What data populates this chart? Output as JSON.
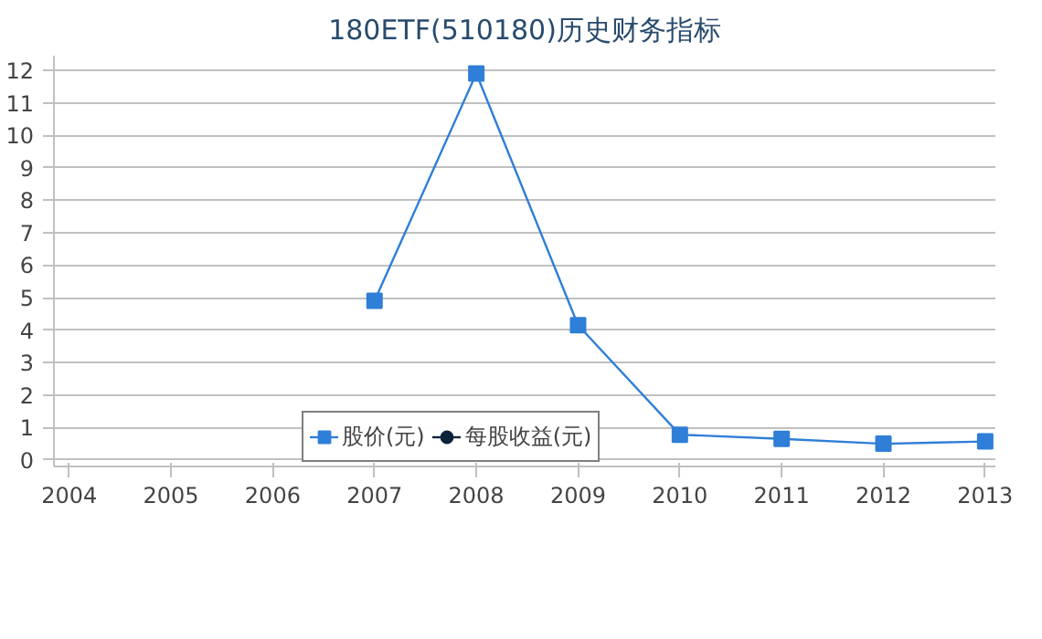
{
  "chart_data": {
    "type": "line",
    "title": "180ETF(510180)历史财务指标",
    "x": [
      2007,
      2008,
      2009,
      2010,
      2011,
      2012,
      2013
    ],
    "series": [
      {
        "name": "股价(元)",
        "color": "#2f7ed8",
        "marker": "square",
        "values": [
          4.9,
          11.9,
          4.15,
          0.78,
          0.65,
          0.5,
          0.57
        ]
      },
      {
        "name": "每股收益(元)",
        "color": "#0d233a",
        "marker": "circle",
        "values": [
          null,
          null,
          null,
          null,
          null,
          null,
          null
        ]
      }
    ],
    "xlim": [
      2003.85,
      2013.1
    ],
    "xticks": [
      2004,
      2005,
      2006,
      2007,
      2008,
      2009,
      2010,
      2011,
      2012,
      2013
    ],
    "ylim": [
      -0.2,
      12.45
    ],
    "yticks": [
      0,
      1,
      2,
      3,
      4,
      5,
      6,
      7,
      8,
      9,
      10,
      11,
      12
    ],
    "grid": "y",
    "legend": "bottom"
  }
}
